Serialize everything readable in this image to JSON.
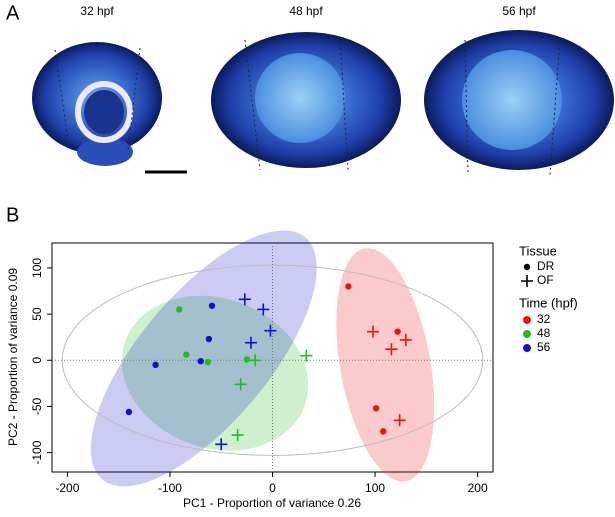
{
  "panel_a": {
    "label": "A",
    "images": [
      "32 hpf",
      "48 hpf",
      "56 hpf"
    ]
  },
  "chart_data": {
    "type": "scatter",
    "panel_label": "B",
    "xlabel": "PC1 - Proportion of variance 0.26",
    "ylabel": "PC2 - Proportion of variance 0.09",
    "xlim": [
      -215,
      215
    ],
    "ylim": [
      -121,
      127
    ],
    "xticks": [
      -200,
      -100,
      0,
      100,
      200
    ],
    "yticks": [
      -100,
      -50,
      0,
      50,
      100
    ],
    "zero_lines": true,
    "tissue_title": "Tissue",
    "tissues": [
      "DR",
      "OF"
    ],
    "time_title": "Time (hpf)",
    "outer_ellipse": {
      "cx": 0,
      "cy": 0,
      "rx": 205,
      "ry": 103,
      "angle": 0,
      "color": "#bbbbbb"
    },
    "series": [
      {
        "name": "32",
        "color": "#ee1111",
        "ellipse": {
          "cx": 110,
          "cy": -5,
          "rx": 44,
          "ry": 128,
          "angle": -10
        },
        "points": [
          {
            "x": [
              74,
              122,
              101,
              108
            ],
            "y": [
              80,
              31,
              -52,
              -77
            ]
          },
          {
            "x": [
              98,
              130,
              116,
              124
            ],
            "y": [
              31,
              22,
              12,
              -65
            ]
          }
        ]
      },
      {
        "name": "48",
        "color": "#22bb22",
        "ellipse": {
          "cx": -56,
          "cy": -14,
          "rx": 93,
          "ry": 81,
          "angle": 20
        },
        "points": [
          {
            "x": [
              -91,
              -84,
              -63,
              -25
            ],
            "y": [
              55,
              6,
              -2,
              1
            ]
          },
          {
            "x": [
              33,
              -17,
              -31,
              -34
            ],
            "y": [
              5,
              0,
              -26,
              -81
            ]
          }
        ]
      },
      {
        "name": "56",
        "color": "#1111cc",
        "ellipse": {
          "cx": -67,
          "cy": 2,
          "rx": 154,
          "ry": 70,
          "angle": -50
        },
        "points": [
          {
            "x": [
              -59,
              -62,
              -70,
              -114,
              -140
            ],
            "y": [
              59,
              23,
              -1,
              -5,
              -56
            ]
          },
          {
            "x": [
              -27,
              -9,
              -2,
              -21,
              -50
            ],
            "y": [
              66,
              55,
              32,
              19,
              -91
            ]
          }
        ]
      }
    ]
  }
}
